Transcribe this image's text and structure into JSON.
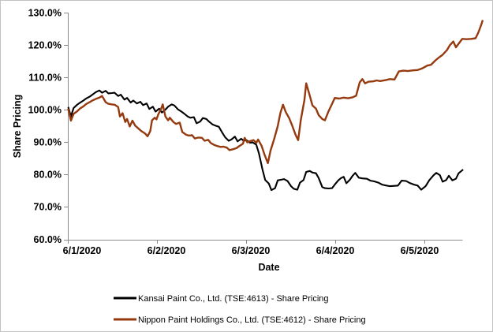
{
  "chart_data": {
    "type": "line",
    "title": "",
    "xlabel": "Date",
    "ylabel": "Share Pricing",
    "grid": false,
    "legend_position": "bottom",
    "x_axis": {
      "tick_labels": [
        "6/1/2020",
        "6/2/2020",
        "6/3/2020",
        "6/4/2020",
        "6/5/2020"
      ],
      "tick_values_days": [
        0,
        1,
        2,
        3,
        4
      ],
      "range_days": [
        0,
        4.67
      ]
    },
    "y_axis": {
      "unit": "%",
      "tick_labels": [
        "130.0%",
        "120.0%",
        "110.0%",
        "100.0%",
        "90.0%",
        "80.0%",
        "70.0%",
        "60.0%"
      ],
      "tick_values": [
        130,
        120,
        110,
        100,
        90,
        80,
        70,
        60
      ],
      "range": [
        60,
        130
      ]
    },
    "series": [
      {
        "name": "Kansai Paint Co., Ltd. (TSE:4613) - Share Pricing",
        "color": "#000000",
        "points": [
          [
            0,
            100.9
          ],
          [
            0.03,
            98
          ],
          [
            0.06,
            100.6
          ],
          [
            0.1,
            101.6
          ],
          [
            0.13,
            102.2
          ],
          [
            0.17,
            102.9
          ],
          [
            0.2,
            103.5
          ],
          [
            0.24,
            104.1
          ],
          [
            0.27,
            104.7
          ],
          [
            0.31,
            105.5
          ],
          [
            0.35,
            106
          ],
          [
            0.38,
            105.3
          ],
          [
            0.42,
            105.9
          ],
          [
            0.45,
            105.1
          ],
          [
            0.49,
            105.2
          ],
          [
            0.52,
            105.3
          ],
          [
            0.56,
            104.3
          ],
          [
            0.59,
            104.7
          ],
          [
            0.63,
            103.2
          ],
          [
            0.66,
            103.7
          ],
          [
            0.7,
            102.3
          ],
          [
            0.73,
            102.9
          ],
          [
            0.77,
            102
          ],
          [
            0.81,
            102.5
          ],
          [
            0.84,
            101.5
          ],
          [
            0.88,
            102
          ],
          [
            0.91,
            100.3
          ],
          [
            0.95,
            101
          ],
          [
            0.98,
            99.5
          ],
          [
            1.02,
            100.4
          ],
          [
            1.05,
            99.2
          ],
          [
            1.09,
            100.1
          ],
          [
            1.12,
            101
          ],
          [
            1.16,
            101.7
          ],
          [
            1.19,
            101.4
          ],
          [
            1.23,
            100.2
          ],
          [
            1.27,
            99.5
          ],
          [
            1.3,
            98.9
          ],
          [
            1.34,
            98
          ],
          [
            1.37,
            97.6
          ],
          [
            1.41,
            97.8
          ],
          [
            1.44,
            95.9
          ],
          [
            1.48,
            96.4
          ],
          [
            1.51,
            97.5
          ],
          [
            1.55,
            97.2
          ],
          [
            1.58,
            96.4
          ],
          [
            1.62,
            95.5
          ],
          [
            1.65,
            95.2
          ],
          [
            1.69,
            94.8
          ],
          [
            1.73,
            92.9
          ],
          [
            1.76,
            91.6
          ],
          [
            1.8,
            90.5
          ],
          [
            1.83,
            90.9
          ],
          [
            1.87,
            91.8
          ],
          [
            1.9,
            90.3
          ],
          [
            1.94,
            91.1
          ],
          [
            1.97,
            90.5
          ],
          [
            2,
            90.7
          ],
          [
            2.04,
            89.9
          ],
          [
            2.07,
            90
          ],
          [
            2.11,
            89.3
          ],
          [
            2.14,
            86.6
          ],
          [
            2.18,
            81.6
          ],
          [
            2.21,
            78.4
          ],
          [
            2.25,
            77.3
          ],
          [
            2.28,
            75.3
          ],
          [
            2.32,
            75.9
          ],
          [
            2.35,
            78.3
          ],
          [
            2.39,
            78.5
          ],
          [
            2.42,
            78.7
          ],
          [
            2.46,
            78.1
          ],
          [
            2.5,
            76.5
          ],
          [
            2.53,
            75.7
          ],
          [
            2.57,
            75.4
          ],
          [
            2.6,
            77.6
          ],
          [
            2.64,
            78.4
          ],
          [
            2.67,
            80.9
          ],
          [
            2.71,
            81.2
          ],
          [
            2.74,
            80.7
          ],
          [
            2.78,
            80.5
          ],
          [
            2.81,
            79
          ],
          [
            2.85,
            76.2
          ],
          [
            2.88,
            75.9
          ],
          [
            2.92,
            75.8
          ],
          [
            2.96,
            75.9
          ],
          [
            2.99,
            77
          ],
          [
            3.03,
            78.3
          ],
          [
            3.06,
            79
          ],
          [
            3.09,
            79.4
          ],
          [
            3.12,
            77.4
          ],
          [
            3.16,
            78.5
          ],
          [
            3.19,
            79.7
          ],
          [
            3.22,
            80.6
          ],
          [
            3.26,
            79.1
          ],
          [
            3.3,
            78.9
          ],
          [
            3.35,
            78.8
          ],
          [
            3.39,
            78.2
          ],
          [
            3.43,
            78
          ],
          [
            3.48,
            77.6
          ],
          [
            3.52,
            77
          ],
          [
            3.57,
            76.7
          ],
          [
            3.61,
            76.5
          ],
          [
            3.66,
            76.6
          ],
          [
            3.7,
            76.7
          ],
          [
            3.74,
            78.2
          ],
          [
            3.79,
            78.1
          ],
          [
            3.83,
            77.5
          ],
          [
            3.88,
            77
          ],
          [
            3.92,
            76.7
          ],
          [
            3.96,
            75.4
          ],
          [
            4.01,
            76.5
          ],
          [
            4.05,
            78.3
          ],
          [
            4.1,
            79.9
          ],
          [
            4.13,
            80.6
          ],
          [
            4.17,
            79.9
          ],
          [
            4.2,
            77.9
          ],
          [
            4.24,
            78.4
          ],
          [
            4.27,
            79.7
          ],
          [
            4.31,
            78.3
          ],
          [
            4.35,
            78.8
          ],
          [
            4.38,
            80.5
          ],
          [
            4.43,
            81.6
          ]
        ]
      },
      {
        "name": "Nippon Paint Holdings Co., Ltd. (TSE:4612) - Share Pricing",
        "color": "#953A0E",
        "points": [
          [
            0,
            100.4
          ],
          [
            0.03,
            96.7
          ],
          [
            0.06,
            98.8
          ],
          [
            0.1,
            99.6
          ],
          [
            0.13,
            100.4
          ],
          [
            0.17,
            101.1
          ],
          [
            0.2,
            101.8
          ],
          [
            0.24,
            102.4
          ],
          [
            0.27,
            102.9
          ],
          [
            0.31,
            103.4
          ],
          [
            0.35,
            103.8
          ],
          [
            0.38,
            104.3
          ],
          [
            0.42,
            102.4
          ],
          [
            0.45,
            101.9
          ],
          [
            0.49,
            101.7
          ],
          [
            0.52,
            101.6
          ],
          [
            0.56,
            100.9
          ],
          [
            0.58,
            98
          ],
          [
            0.61,
            99
          ],
          [
            0.64,
            96.3
          ],
          [
            0.66,
            97.2
          ],
          [
            0.69,
            94.9
          ],
          [
            0.72,
            96.7
          ],
          [
            0.75,
            95.2
          ],
          [
            0.79,
            94.2
          ],
          [
            0.82,
            93.5
          ],
          [
            0.86,
            92.8
          ],
          [
            0.89,
            91.9
          ],
          [
            0.92,
            93.5
          ],
          [
            0.94,
            96.8
          ],
          [
            0.97,
            97.6
          ],
          [
            0.99,
            97.1
          ],
          [
            1.01,
            98.6
          ],
          [
            1.04,
            100.2
          ],
          [
            1.06,
            101.7
          ],
          [
            1.09,
            98
          ],
          [
            1.12,
            96.8
          ],
          [
            1.14,
            97.6
          ],
          [
            1.18,
            96.3
          ],
          [
            1.21,
            95.7
          ],
          [
            1.25,
            96.1
          ],
          [
            1.28,
            93.2
          ],
          [
            1.32,
            92.4
          ],
          [
            1.35,
            92.1
          ],
          [
            1.39,
            92.2
          ],
          [
            1.42,
            91.2
          ],
          [
            1.46,
            91.5
          ],
          [
            1.5,
            91.4
          ],
          [
            1.53,
            90.5
          ],
          [
            1.57,
            90.8
          ],
          [
            1.6,
            89.8
          ],
          [
            1.64,
            89.2
          ],
          [
            1.67,
            88.9
          ],
          [
            1.71,
            88.6
          ],
          [
            1.74,
            88.7
          ],
          [
            1.78,
            88.4
          ],
          [
            1.81,
            87.6
          ],
          [
            1.85,
            87.9
          ],
          [
            1.89,
            88.3
          ],
          [
            1.92,
            88.9
          ],
          [
            1.96,
            89.6
          ],
          [
            1.98,
            91.4
          ],
          [
            2.01,
            90
          ],
          [
            2.04,
            90.4
          ],
          [
            2.08,
            90.7
          ],
          [
            2.11,
            89.9
          ],
          [
            2.13,
            90.9
          ],
          [
            2.17,
            88.9
          ],
          [
            2.2,
            86.4
          ],
          [
            2.24,
            83.6
          ],
          [
            2.27,
            87.5
          ],
          [
            2.31,
            91
          ],
          [
            2.35,
            95
          ],
          [
            2.38,
            99
          ],
          [
            2.41,
            101.6
          ],
          [
            2.44,
            99.4
          ],
          [
            2.48,
            97.4
          ],
          [
            2.51,
            95.4
          ],
          [
            2.55,
            92.4
          ],
          [
            2.58,
            90.7
          ],
          [
            2.61,
            97
          ],
          [
            2.65,
            103
          ],
          [
            2.67,
            108.2
          ],
          [
            2.71,
            104.4
          ],
          [
            2.74,
            101.4
          ],
          [
            2.78,
            100.4
          ],
          [
            2.81,
            98.4
          ],
          [
            2.85,
            97.2
          ],
          [
            2.88,
            96.8
          ],
          [
            2.92,
            99.6
          ],
          [
            2.96,
            101.9
          ],
          [
            2.99,
            103.7
          ],
          [
            3.04,
            103.5
          ],
          [
            3.09,
            103.8
          ],
          [
            3.14,
            103.6
          ],
          [
            3.19,
            103.9
          ],
          [
            3.23,
            104.4
          ],
          [
            3.27,
            108.5
          ],
          [
            3.3,
            109.5
          ],
          [
            3.33,
            108.2
          ],
          [
            3.37,
            108.7
          ],
          [
            3.42,
            108.8
          ],
          [
            3.46,
            109.1
          ],
          [
            3.5,
            108.9
          ],
          [
            3.56,
            109.2
          ],
          [
            3.61,
            109.5
          ],
          [
            3.66,
            109.4
          ],
          [
            3.71,
            111.9
          ],
          [
            3.76,
            112.1
          ],
          [
            3.81,
            112
          ],
          [
            3.87,
            112.2
          ],
          [
            3.92,
            112.3
          ],
          [
            3.97,
            112.8
          ],
          [
            4.03,
            113.7
          ],
          [
            4.07,
            113.9
          ],
          [
            4.12,
            115.3
          ],
          [
            4.16,
            116.2
          ],
          [
            4.2,
            117
          ],
          [
            4.25,
            118.5
          ],
          [
            4.28,
            119.9
          ],
          [
            4.32,
            121.1
          ],
          [
            4.35,
            119.3
          ],
          [
            4.39,
            120.8
          ],
          [
            4.42,
            121.9
          ],
          [
            4.47,
            121.8
          ],
          [
            4.52,
            121.9
          ],
          [
            4.57,
            122.1
          ],
          [
            4.6,
            123.8
          ],
          [
            4.63,
            126
          ],
          [
            4.65,
            127.7
          ]
        ]
      }
    ]
  },
  "colors": {
    "background": "#FFFFFF",
    "frame_border": "#C3C3C3",
    "axis_line": "#8C8C8C",
    "text": "#000000",
    "series_kansai": "#000000",
    "series_nippon": "#953A0E"
  }
}
